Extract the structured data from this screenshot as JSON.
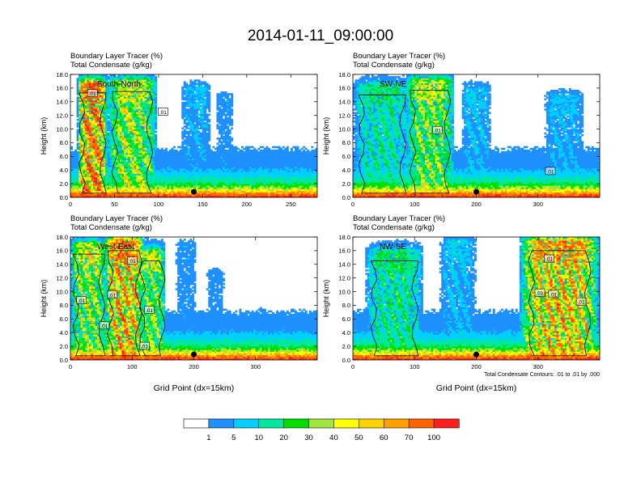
{
  "title": "2014-01-11_09:00:00",
  "chart_data": [
    {
      "type": "heatmap",
      "panel_label": "South-North",
      "header_line1": "Boundary Layer Tracer   (%)",
      "header_line2": "Total Condensate   (g/kg)",
      "ylabel": "Height (km)",
      "xlabel": "",
      "footnote": "",
      "xlim": [
        0,
        280
      ],
      "ylim": [
        0,
        18
      ],
      "xticks": [
        0,
        50,
        100,
        150,
        200,
        250
      ],
      "yticks": [
        "0.0",
        "2.0",
        "4.0",
        "6.0",
        "8.0",
        "10.0",
        "12.0",
        "14.0",
        "16.0",
        "18.0"
      ],
      "marker_x": 140,
      "contour_labels": [
        {
          "x": 25,
          "y": 15.2,
          "text": ".01"
        },
        {
          "x": 105,
          "y": 12.5,
          "text": ".01"
        }
      ],
      "plumes": [
        {
          "x0": 8,
          "x1": 42,
          "top": 16.8,
          "core": 95,
          "weight": 1.0
        },
        {
          "x0": 42,
          "x1": 98,
          "top": 17.0,
          "core": 45,
          "weight": 1.0
        },
        {
          "x0": 125,
          "x1": 160,
          "top": 16.2,
          "core": 20,
          "weight": 0.3
        },
        {
          "x0": 165,
          "x1": 185,
          "top": 14.8,
          "core": 15,
          "weight": 0.25
        }
      ]
    },
    {
      "type": "heatmap",
      "panel_label": "SW-NE",
      "header_line1": "Boundary Layer Tracer   (%)",
      "header_line2": "Total Condensate   (g/kg)",
      "ylabel": "Height (km)",
      "xlabel": "",
      "footnote": "",
      "xlim": [
        0,
        400
      ],
      "ylim": [
        0,
        18
      ],
      "xticks": [
        0,
        100,
        200,
        300
      ],
      "yticks": [
        "0.0",
        "2.0",
        "4.0",
        "6.0",
        "8.0",
        "10.0",
        "12.0",
        "14.0",
        "16.0",
        "18.0"
      ],
      "marker_x": 200,
      "contour_labels": [
        {
          "x": 137,
          "y": 9.8,
          "text": ".01"
        },
        {
          "x": 320,
          "y": 3.8,
          "text": ".01"
        }
      ],
      "plumes": [
        {
          "x0": 0,
          "x1": 95,
          "top": 16.5,
          "core": 30,
          "weight": 0.6
        },
        {
          "x0": 85,
          "x1": 165,
          "top": 17.2,
          "core": 40,
          "weight": 1.0
        },
        {
          "x0": 175,
          "x1": 225,
          "top": 16.0,
          "core": 25,
          "weight": 0.3
        },
        {
          "x0": 310,
          "x1": 375,
          "top": 15.0,
          "core": 20,
          "weight": 0.35
        }
      ]
    },
    {
      "type": "heatmap",
      "panel_label": "West-East",
      "header_line1": "Boundary Layer Tracer   (%)",
      "header_line2": "Total Condensate   (g/kg)",
      "ylabel": "Height (km)",
      "xlabel": "Grid Point (dx=15km)",
      "footnote": "",
      "xlim": [
        0,
        400
      ],
      "ylim": [
        0,
        18
      ],
      "xticks": [
        0,
        100,
        200,
        300
      ],
      "yticks": [
        "0.0",
        "2.0",
        "4.0",
        "6.0",
        "8.0",
        "10.0",
        "12.0",
        "14.0",
        "16.0",
        "18.0"
      ],
      "marker_x": 200,
      "contour_labels": [
        {
          "x": 100,
          "y": 14.5,
          "text": ".01"
        },
        {
          "x": 68,
          "y": 9.5,
          "text": ".01"
        },
        {
          "x": 18,
          "y": 8.7,
          "text": ".01"
        },
        {
          "x": 128,
          "y": 7.3,
          "text": ".01"
        },
        {
          "x": 55,
          "y": 5.0,
          "text": ".01"
        },
        {
          "x": 120,
          "y": 2.0,
          "text": ".01"
        }
      ],
      "plumes": [
        {
          "x0": 0,
          "x1": 60,
          "top": 17.0,
          "core": 45,
          "weight": 1.0
        },
        {
          "x0": 55,
          "x1": 120,
          "top": 17.5,
          "core": 80,
          "weight": 1.0
        },
        {
          "x0": 110,
          "x1": 155,
          "top": 16.0,
          "core": 50,
          "weight": 0.8
        },
        {
          "x0": 170,
          "x1": 205,
          "top": 17.0,
          "core": 15,
          "weight": 0.25
        },
        {
          "x0": 220,
          "x1": 250,
          "top": 13.0,
          "core": 15,
          "weight": 0.2
        }
      ]
    },
    {
      "type": "heatmap",
      "panel_label": "NW-SE",
      "header_line1": "Boundary Layer Tracer   (%)",
      "header_line2": "Total Condensate   (g/kg)",
      "ylabel": "Height (km)",
      "xlabel": "Grid Point (dx=15km)",
      "footnote": "Total Condensate Contours: .01 to .01 by .000",
      "xlim": [
        0,
        400
      ],
      "ylim": [
        0,
        18
      ],
      "xticks": [
        0,
        100,
        200,
        300
      ],
      "yticks": [
        "0.0",
        "2.0",
        "4.0",
        "6.0",
        "8.0",
        "10.0",
        "12.0",
        "14.0",
        "16.0",
        "18.0"
      ],
      "marker_x": 200,
      "contour_labels": [
        {
          "x": 318,
          "y": 14.8,
          "text": ".01"
        },
        {
          "x": 303,
          "y": 9.8,
          "text": ".01"
        },
        {
          "x": 325,
          "y": 9.6,
          "text": ".01"
        },
        {
          "x": 370,
          "y": 8.5,
          "text": ".01"
        }
      ],
      "plumes": [
        {
          "x0": 20,
          "x1": 115,
          "top": 16.0,
          "core": 30,
          "weight": 0.7
        },
        {
          "x0": 140,
          "x1": 200,
          "top": 17.5,
          "core": 25,
          "weight": 0.3
        },
        {
          "x0": 270,
          "x1": 400,
          "top": 17.5,
          "core": 75,
          "weight": 1.0
        }
      ]
    }
  ],
  "colorbar": {
    "colors": [
      "#ffffff",
      "#1e90ff",
      "#00d0ff",
      "#00e8a0",
      "#00e000",
      "#a0e63c",
      "#ffff00",
      "#ffd200",
      "#ffa000",
      "#ff6400",
      "#ff1e1e"
    ],
    "labels": [
      "1",
      "5",
      "10",
      "20",
      "30",
      "40",
      "50",
      "60",
      "70",
      "100"
    ]
  }
}
